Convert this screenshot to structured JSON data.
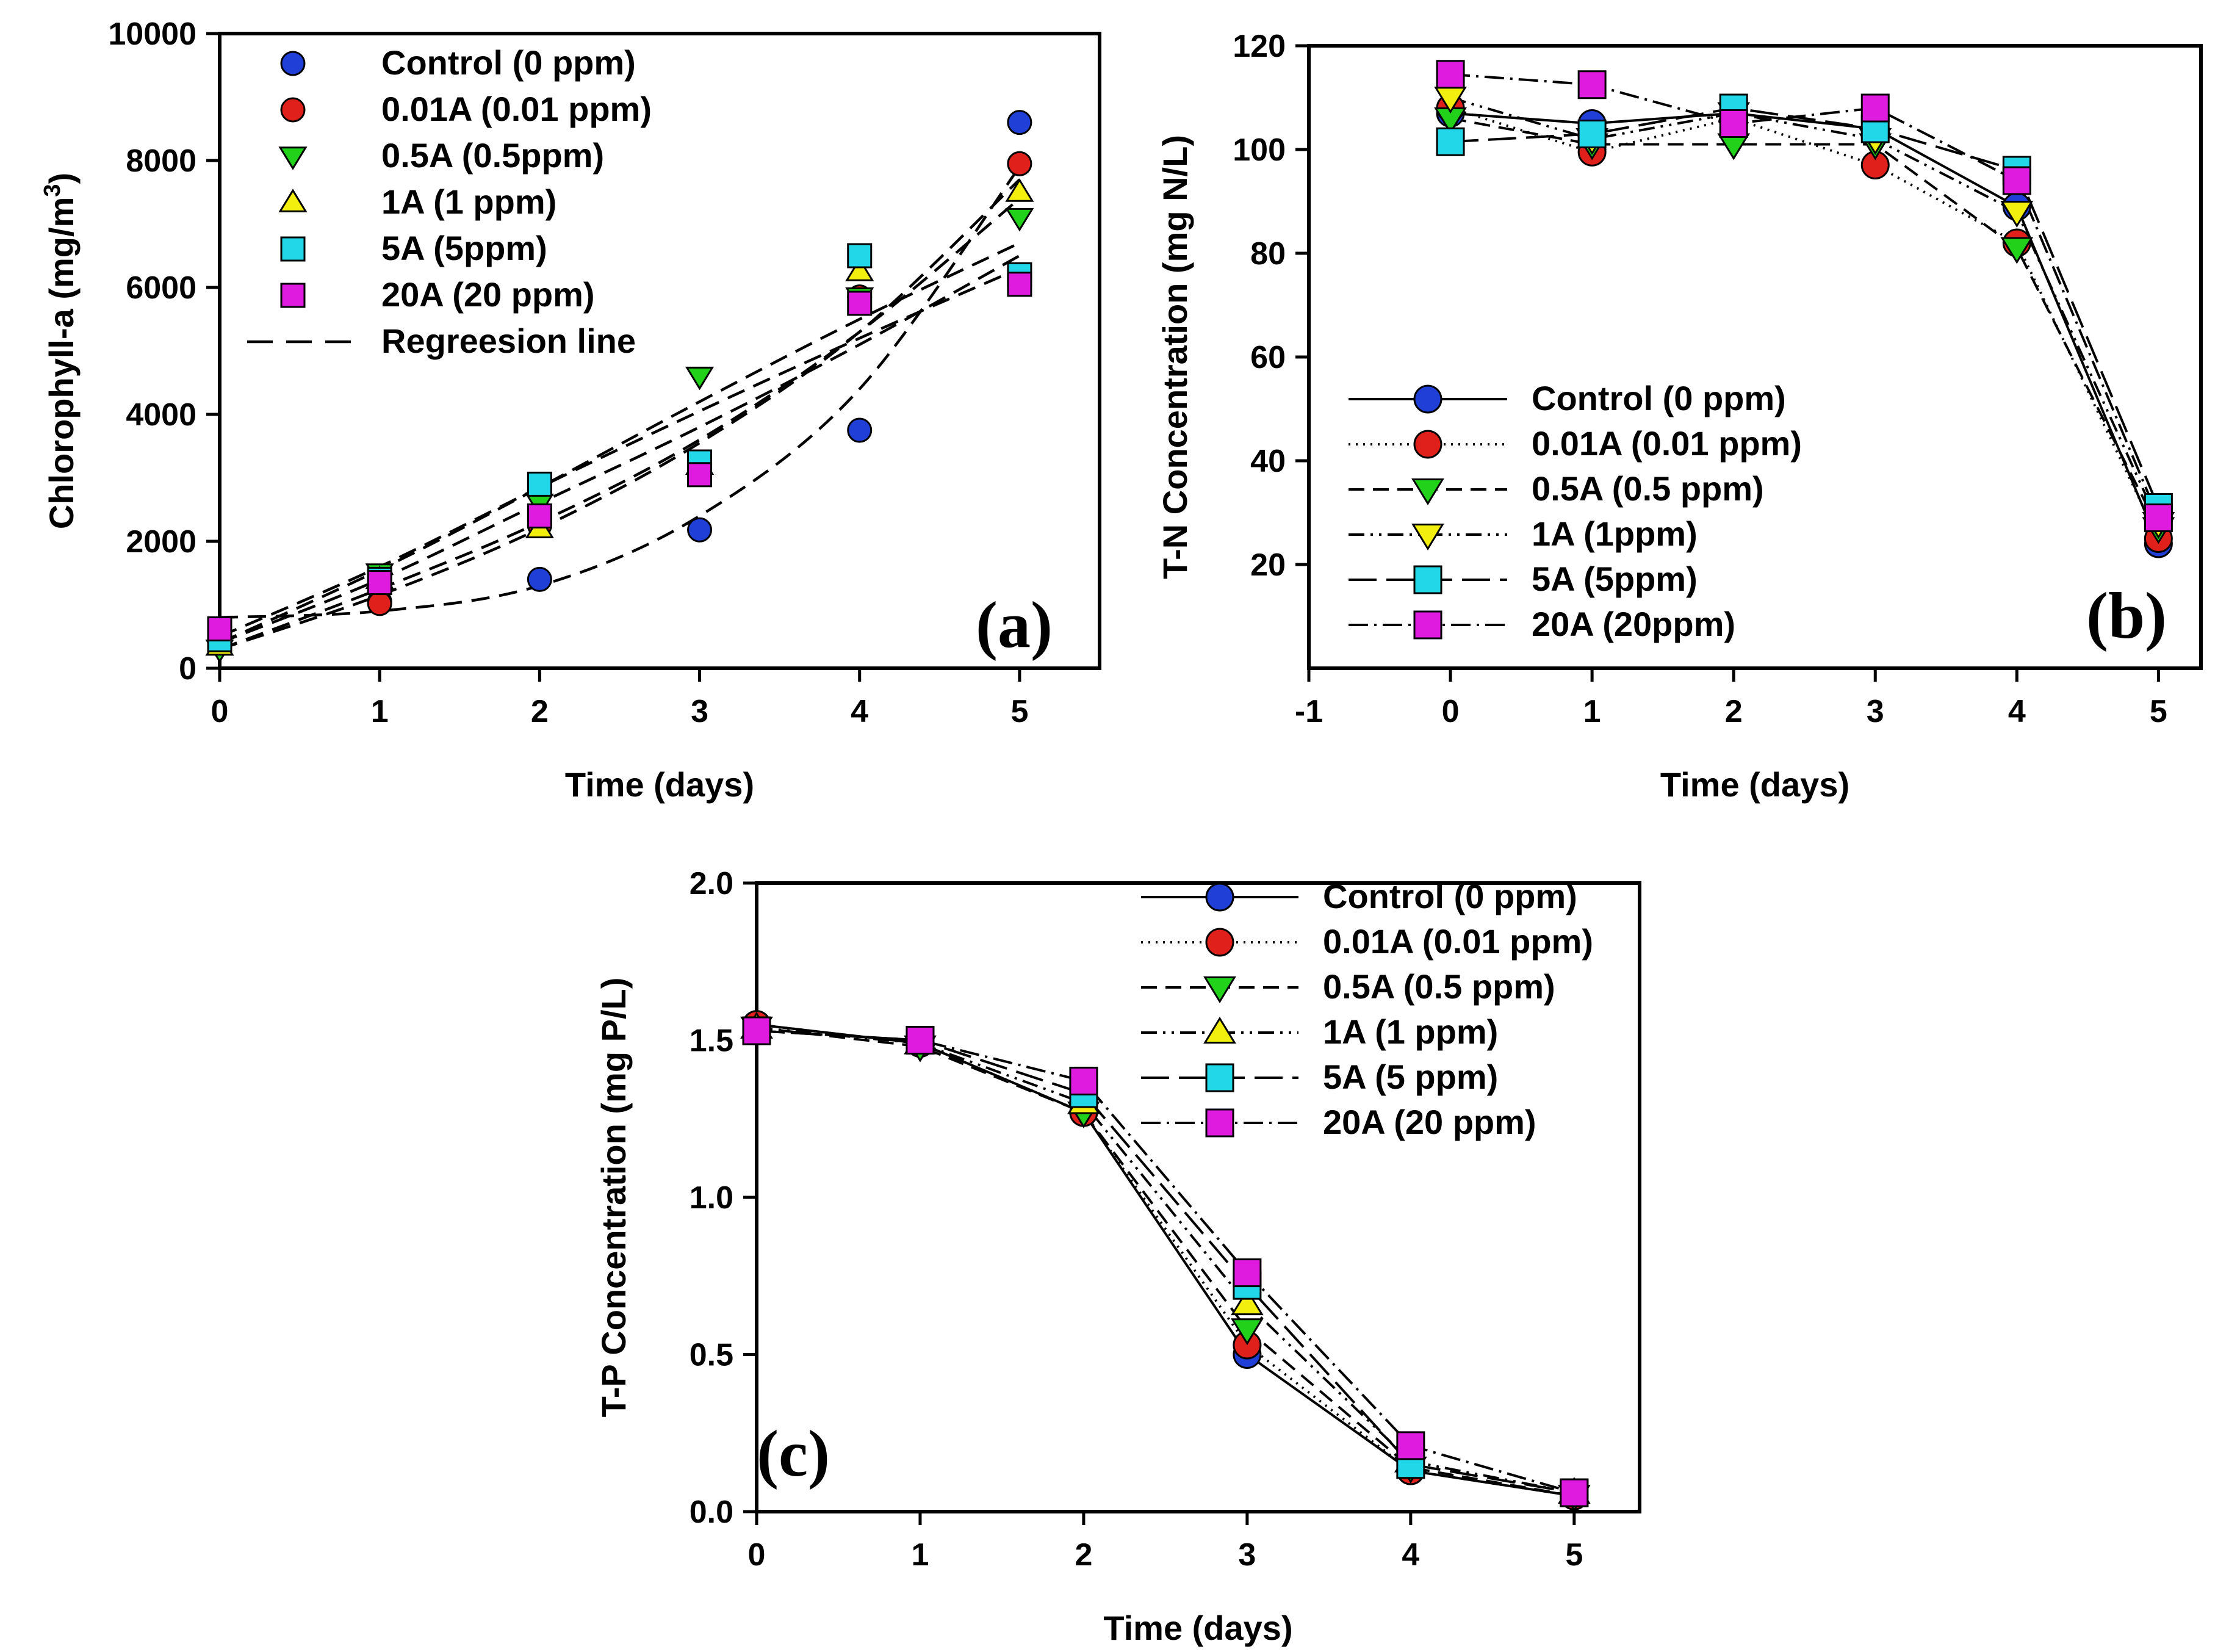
{
  "chart_data": [
    {
      "id": "a",
      "type": "scatter",
      "panel_label": "(a)",
      "xlabel": "Time (days)",
      "ylabel": "Chlorophyll-a (mg/m",
      "ylabel_sup": "3",
      "ylabel_close": ")",
      "xlim": [
        0,
        5.5
      ],
      "ylim": [
        0,
        10000
      ],
      "xticks": [
        0,
        1,
        2,
        3,
        4,
        5
      ],
      "yticks": [
        0,
        2000,
        4000,
        6000,
        8000,
        10000
      ],
      "x": [
        0,
        1,
        2,
        3,
        4,
        5
      ],
      "legend_position": "top-left",
      "series": [
        {
          "name": "Control (0 ppm)",
          "marker": "circle",
          "color": "#1f3fd6",
          "values": [
            450,
            1050,
            1400,
            2180,
            3750,
            8600
          ],
          "fit": [
            800,
            900,
            1300,
            2400,
            4400,
            7900
          ]
        },
        {
          "name": "0.01A (0.01 ppm)",
          "marker": "circle",
          "color": "#e0201b",
          "values": [
            620,
            1020,
            2250,
            3100,
            5850,
            7950
          ],
          "fit": [
            300,
            1150,
            2200,
            3550,
            5300,
            7700
          ]
        },
        {
          "name": "0.5A (0.5ppm)",
          "marker": "triangle-down",
          "color": "#22d11a",
          "values": [
            300,
            1500,
            2600,
            4600,
            5850,
            7100
          ],
          "fit": [
            400,
            1550,
            2850,
            4200,
            5500,
            6700
          ]
        },
        {
          "name": "1A  (1 ppm)",
          "marker": "triangle-up",
          "color": "#f2ef0f",
          "values": [
            350,
            1400,
            2200,
            3200,
            6250,
            7500
          ],
          "fit": [
            300,
            1250,
            2300,
            3600,
            5300,
            7400
          ]
        },
        {
          "name": "5A (5ppm)",
          "marker": "square",
          "color": "#22d7e8",
          "values": [
            450,
            1400,
            2900,
            3250,
            6500,
            6200
          ],
          "fit": [
            500,
            1600,
            2850,
            4050,
            5200,
            6300
          ]
        },
        {
          "name": "20A (20 ppm)",
          "marker": "square",
          "color": "#e01be0",
          "values": [
            620,
            1350,
            2400,
            3050,
            5750,
            6050
          ],
          "fit": [
            400,
            1400,
            2600,
            3800,
            5100,
            6500
          ]
        }
      ],
      "regression_label": "Regreesion line"
    },
    {
      "id": "b",
      "type": "line",
      "panel_label": "(b)",
      "xlabel": "Time (days)",
      "ylabel": "T-N Concentration (mg N/L)",
      "xlim": [
        -1,
        5.3
      ],
      "ylim": [
        0,
        120
      ],
      "xticks": [
        -1,
        0,
        1,
        2,
        3,
        4,
        5
      ],
      "yticks": [
        20,
        40,
        60,
        80,
        100,
        120
      ],
      "x": [
        0,
        1,
        2,
        3,
        4,
        5
      ],
      "legend_position": "bottom-left",
      "series": [
        {
          "name": "Control (0 ppm)",
          "marker": "circle",
          "color": "#1f3fd6",
          "dash": "",
          "values": [
            107,
            105,
            107,
            104,
            89,
            24
          ]
        },
        {
          "name": "0.01A (0.01 ppm)",
          "marker": "circle",
          "color": "#e0201b",
          "dash": "3,9",
          "values": [
            108,
            99.5,
            106,
            97,
            82,
            25
          ]
        },
        {
          "name": "0.5A (0.5 ppm)",
          "marker": "triangle-down",
          "color": "#22d11a",
          "dash": "26,14",
          "values": [
            106,
            101,
            101,
            101,
            81,
            27
          ]
        },
        {
          "name": "1A (1ppm)",
          "marker": "triangle-down",
          "color": "#f2ef0f",
          "dash": "26,10,4,10,4,10",
          "values": [
            110,
            102,
            107,
            102,
            88,
            28
          ]
        },
        {
          "name": "5A (5ppm)",
          "marker": "square",
          "color": "#22d7e8",
          "dash": "46,16",
          "values": [
            101.5,
            103,
            108,
            104,
            96,
            31
          ]
        },
        {
          "name": "20A (20ppm)",
          "marker": "square",
          "color": "#e01be0",
          "dash": "32,10,4,10",
          "values": [
            114.5,
            112.5,
            105,
            108,
            94,
            29
          ]
        }
      ]
    },
    {
      "id": "c",
      "type": "line",
      "panel_label": "(c)",
      "xlabel": "Time (days)",
      "ylabel": "T-P Concentration (mg P/L)",
      "xlim": [
        0,
        5.4
      ],
      "ylim": [
        0,
        2.0
      ],
      "xticks": [
        0,
        1,
        2,
        3,
        4,
        5
      ],
      "yticks": [
        0.0,
        0.5,
        1.0,
        1.5,
        2.0
      ],
      "ytick_labels": [
        "0.0",
        "0.5",
        "1.0",
        "1.5",
        "2.0"
      ],
      "x": [
        0,
        1,
        2,
        3,
        4,
        5
      ],
      "legend_position": "top-right",
      "series": [
        {
          "name": "Control (0 ppm)",
          "marker": "circle",
          "color": "#1f3fd6",
          "dash": "",
          "values": [
            1.55,
            1.49,
            1.27,
            0.5,
            0.13,
            0.05
          ]
        },
        {
          "name": "0.01A (0.01 ppm)",
          "marker": "circle",
          "color": "#e0201b",
          "dash": "3,9",
          "values": [
            1.55,
            1.49,
            1.27,
            0.53,
            0.13,
            0.05
          ]
        },
        {
          "name": "0.5A (0.5 ppm)",
          "marker": "triangle-down",
          "color": "#22d11a",
          "dash": "26,14",
          "values": [
            1.54,
            1.48,
            1.27,
            0.58,
            0.14,
            0.05
          ]
        },
        {
          "name": "1A (1 ppm)",
          "marker": "triangle-up",
          "color": "#f2ef0f",
          "dash": "26,10,4,10,4,10",
          "values": [
            1.54,
            1.49,
            1.3,
            0.66,
            0.16,
            0.06
          ]
        },
        {
          "name": "5A (5 ppm)",
          "marker": "square",
          "color": "#22d7e8",
          "dash": "46,16",
          "values": [
            1.53,
            1.5,
            1.33,
            0.72,
            0.15,
            0.06
          ]
        },
        {
          "name": "20A (20 ppm)",
          "marker": "square",
          "color": "#e01be0",
          "dash": "32,10,4,10",
          "values": [
            1.53,
            1.5,
            1.37,
            0.76,
            0.21,
            0.06
          ]
        }
      ]
    }
  ]
}
